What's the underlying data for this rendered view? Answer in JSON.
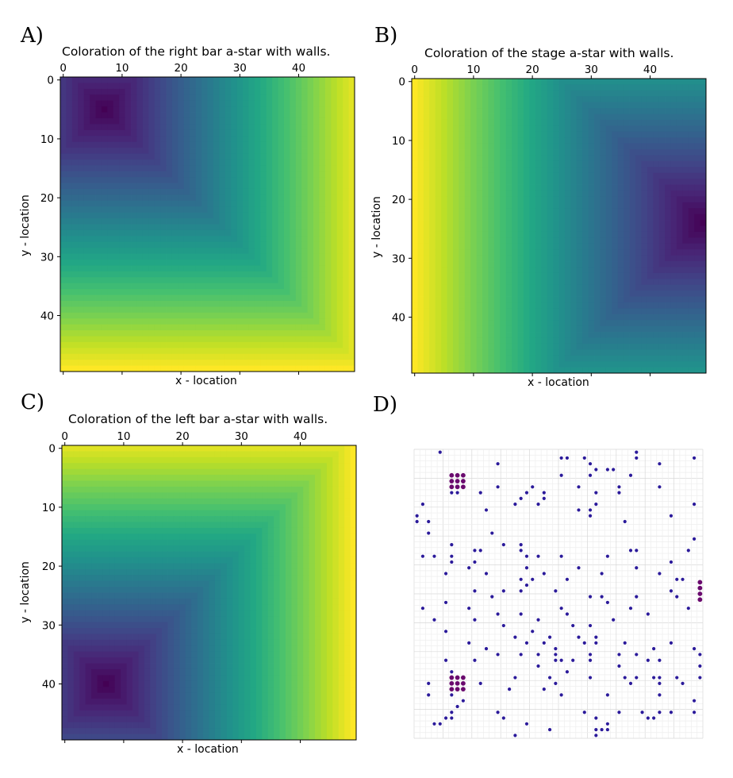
{
  "panels": [
    {
      "id": "A",
      "letter": "A)",
      "title": "Coloration of the right bar a-star with walls.",
      "xlabel": "x - location",
      "ylabel": "y - location"
    },
    {
      "id": "B",
      "letter": "B)",
      "title": "Coloration of the stage a-star with walls.",
      "xlabel": "x - location",
      "ylabel": "y - location"
    },
    {
      "id": "C",
      "letter": "C)",
      "title": "Coloration of the left bar a-star with walls.",
      "xlabel": "x - location",
      "ylabel": "y - location"
    },
    {
      "id": "D",
      "letter": "D)"
    }
  ],
  "chart_data": [
    {
      "type": "heatmap",
      "title": "Coloration of the right bar a-star with walls.",
      "xlabel": "x - location",
      "ylabel": "y - location",
      "grid_size": [
        50,
        50
      ],
      "x_ticks": [
        0,
        10,
        20,
        30,
        40
      ],
      "y_ticks": [
        0,
        10,
        20,
        30,
        40
      ],
      "xlim": [
        0,
        49
      ],
      "ylim": [
        0,
        49
      ],
      "x_axis_position": "top",
      "colormap": "viridis",
      "source_cell": [
        7,
        5
      ],
      "distance": "chebyshev"
    },
    {
      "type": "heatmap",
      "title": "Coloration of the stage a-star with walls.",
      "xlabel": "x - location",
      "ylabel": "y - location",
      "grid_size": [
        50,
        50
      ],
      "x_ticks": [
        0,
        10,
        20,
        30,
        40
      ],
      "y_ticks": [
        0,
        10,
        20,
        30,
        40
      ],
      "xlim": [
        0,
        49
      ],
      "ylim": [
        0,
        49
      ],
      "x_axis_position": "top",
      "colormap": "viridis",
      "source_cell": [
        49,
        24
      ],
      "distance": "chebyshev"
    },
    {
      "type": "heatmap",
      "title": "Coloration of the left bar a-star with walls.",
      "xlabel": "x - location",
      "ylabel": "y - location",
      "grid_size": [
        50,
        50
      ],
      "x_ticks": [
        0,
        10,
        20,
        30,
        40
      ],
      "y_ticks": [
        0,
        10,
        20,
        30,
        40
      ],
      "xlim": [
        0,
        49
      ],
      "ylim": [
        0,
        49
      ],
      "x_axis_position": "top",
      "colormap": "viridis",
      "source_cell": [
        7,
        40
      ],
      "distance": "chebyshev"
    },
    {
      "type": "scatter",
      "grid_size": [
        50,
        50
      ],
      "grid": true,
      "colors": {
        "dot": "#2b1a9a",
        "target": "#6a0a6e"
      },
      "targets": [
        {
          "x": 7,
          "y": 5
        },
        {
          "x": 49,
          "y": 24
        },
        {
          "x": 7,
          "y": 40
        }
      ],
      "points": [
        {
          "x": 4,
          "y": 0
        },
        {
          "x": 25,
          "y": 1
        },
        {
          "x": 26,
          "y": 1
        },
        {
          "x": 29,
          "y": 1
        },
        {
          "x": 38,
          "y": 1
        },
        {
          "x": 38,
          "y": 0
        },
        {
          "x": 48,
          "y": 1
        },
        {
          "x": 14,
          "y": 2
        },
        {
          "x": 30,
          "y": 2
        },
        {
          "x": 33,
          "y": 3
        },
        {
          "x": 34,
          "y": 3
        },
        {
          "x": 31,
          "y": 3
        },
        {
          "x": 42,
          "y": 2
        },
        {
          "x": 25,
          "y": 4
        },
        {
          "x": 30,
          "y": 4
        },
        {
          "x": 37,
          "y": 4
        },
        {
          "x": 14,
          "y": 6
        },
        {
          "x": 20,
          "y": 6
        },
        {
          "x": 28,
          "y": 6
        },
        {
          "x": 35,
          "y": 6
        },
        {
          "x": 42,
          "y": 6
        },
        {
          "x": 6,
          "y": 7
        },
        {
          "x": 7,
          "y": 7
        },
        {
          "x": 11,
          "y": 7
        },
        {
          "x": 19,
          "y": 7
        },
        {
          "x": 22,
          "y": 7
        },
        {
          "x": 31,
          "y": 7
        },
        {
          "x": 35,
          "y": 7
        },
        {
          "x": 18,
          "y": 8
        },
        {
          "x": 22,
          "y": 8
        },
        {
          "x": 1,
          "y": 9
        },
        {
          "x": 12,
          "y": 10
        },
        {
          "x": 17,
          "y": 9
        },
        {
          "x": 21,
          "y": 9
        },
        {
          "x": 28,
          "y": 10
        },
        {
          "x": 30,
          "y": 10
        },
        {
          "x": 31,
          "y": 9
        },
        {
          "x": 48,
          "y": 9
        },
        {
          "x": 0,
          "y": 11
        },
        {
          "x": 30,
          "y": 11
        },
        {
          "x": 44,
          "y": 11
        },
        {
          "x": 2,
          "y": 12
        },
        {
          "x": 36,
          "y": 12
        },
        {
          "x": 0,
          "y": 12
        },
        {
          "x": 13,
          "y": 14
        },
        {
          "x": 2,
          "y": 14
        },
        {
          "x": 15,
          "y": 16
        },
        {
          "x": 6,
          "y": 16
        },
        {
          "x": 18,
          "y": 16
        },
        {
          "x": 48,
          "y": 15
        },
        {
          "x": 3,
          "y": 18
        },
        {
          "x": 1,
          "y": 18
        },
        {
          "x": 6,
          "y": 18
        },
        {
          "x": 10,
          "y": 17
        },
        {
          "x": 11,
          "y": 17
        },
        {
          "x": 18,
          "y": 17
        },
        {
          "x": 19,
          "y": 18
        },
        {
          "x": 21,
          "y": 18
        },
        {
          "x": 25,
          "y": 18
        },
        {
          "x": 37,
          "y": 17
        },
        {
          "x": 38,
          "y": 17
        },
        {
          "x": 47,
          "y": 17
        },
        {
          "x": 6,
          "y": 19
        },
        {
          "x": 10,
          "y": 19
        },
        {
          "x": 33,
          "y": 18
        },
        {
          "x": 44,
          "y": 19
        },
        {
          "x": 9,
          "y": 20
        },
        {
          "x": 19,
          "y": 20
        },
        {
          "x": 28,
          "y": 20
        },
        {
          "x": 38,
          "y": 20
        },
        {
          "x": 5,
          "y": 21
        },
        {
          "x": 12,
          "y": 21
        },
        {
          "x": 22,
          "y": 21
        },
        {
          "x": 32,
          "y": 21
        },
        {
          "x": 42,
          "y": 21
        },
        {
          "x": 18,
          "y": 22
        },
        {
          "x": 20,
          "y": 22
        },
        {
          "x": 26,
          "y": 22
        },
        {
          "x": 46,
          "y": 22
        },
        {
          "x": 45,
          "y": 22
        },
        {
          "x": 10,
          "y": 24
        },
        {
          "x": 15,
          "y": 24
        },
        {
          "x": 18,
          "y": 24
        },
        {
          "x": 19,
          "y": 23
        },
        {
          "x": 24,
          "y": 24
        },
        {
          "x": 44,
          "y": 24
        },
        {
          "x": 13,
          "y": 25
        },
        {
          "x": 30,
          "y": 25
        },
        {
          "x": 32,
          "y": 25
        },
        {
          "x": 33,
          "y": 26
        },
        {
          "x": 38,
          "y": 25
        },
        {
          "x": 45,
          "y": 25
        },
        {
          "x": 5,
          "y": 26
        },
        {
          "x": 1,
          "y": 27
        },
        {
          "x": 25,
          "y": 27
        },
        {
          "x": 37,
          "y": 27
        },
        {
          "x": 47,
          "y": 27
        },
        {
          "x": 9,
          "y": 27
        },
        {
          "x": 14,
          "y": 28
        },
        {
          "x": 18,
          "y": 28
        },
        {
          "x": 26,
          "y": 28
        },
        {
          "x": 34,
          "y": 29
        },
        {
          "x": 40,
          "y": 28
        },
        {
          "x": 3,
          "y": 29
        },
        {
          "x": 10,
          "y": 29
        },
        {
          "x": 15,
          "y": 30
        },
        {
          "x": 21,
          "y": 29
        },
        {
          "x": 27,
          "y": 30
        },
        {
          "x": 30,
          "y": 30
        },
        {
          "x": 5,
          "y": 31
        },
        {
          "x": 17,
          "y": 32
        },
        {
          "x": 20,
          "y": 31
        },
        {
          "x": 23,
          "y": 32
        },
        {
          "x": 28,
          "y": 32
        },
        {
          "x": 31,
          "y": 32
        },
        {
          "x": 9,
          "y": 33
        },
        {
          "x": 12,
          "y": 34
        },
        {
          "x": 19,
          "y": 33
        },
        {
          "x": 22,
          "y": 33
        },
        {
          "x": 24,
          "y": 34
        },
        {
          "x": 29,
          "y": 33
        },
        {
          "x": 31,
          "y": 33
        },
        {
          "x": 36,
          "y": 33
        },
        {
          "x": 44,
          "y": 33
        },
        {
          "x": 48,
          "y": 34
        },
        {
          "x": 41,
          "y": 34
        },
        {
          "x": 14,
          "y": 35
        },
        {
          "x": 18,
          "y": 35
        },
        {
          "x": 21,
          "y": 35
        },
        {
          "x": 24,
          "y": 35
        },
        {
          "x": 30,
          "y": 35
        },
        {
          "x": 35,
          "y": 35
        },
        {
          "x": 38,
          "y": 35
        },
        {
          "x": 49,
          "y": 35
        },
        {
          "x": 5,
          "y": 36
        },
        {
          "x": 10,
          "y": 36
        },
        {
          "x": 24,
          "y": 36
        },
        {
          "x": 25,
          "y": 36
        },
        {
          "x": 27,
          "y": 36
        },
        {
          "x": 30,
          "y": 36
        },
        {
          "x": 40,
          "y": 36
        },
        {
          "x": 42,
          "y": 36
        },
        {
          "x": 21,
          "y": 37
        },
        {
          "x": 26,
          "y": 38
        },
        {
          "x": 35,
          "y": 37
        },
        {
          "x": 49,
          "y": 37
        },
        {
          "x": 6,
          "y": 38
        },
        {
          "x": 17,
          "y": 39
        },
        {
          "x": 23,
          "y": 39
        },
        {
          "x": 30,
          "y": 39
        },
        {
          "x": 36,
          "y": 39
        },
        {
          "x": 38,
          "y": 39
        },
        {
          "x": 41,
          "y": 39
        },
        {
          "x": 42,
          "y": 39
        },
        {
          "x": 45,
          "y": 39
        },
        {
          "x": 49,
          "y": 39
        },
        {
          "x": 2,
          "y": 40
        },
        {
          "x": 11,
          "y": 40
        },
        {
          "x": 24,
          "y": 40
        },
        {
          "x": 37,
          "y": 40
        },
        {
          "x": 42,
          "y": 40
        },
        {
          "x": 46,
          "y": 40
        },
        {
          "x": 22,
          "y": 41
        },
        {
          "x": 16,
          "y": 41
        },
        {
          "x": 25,
          "y": 42
        },
        {
          "x": 2,
          "y": 42
        },
        {
          "x": 6,
          "y": 42
        },
        {
          "x": 33,
          "y": 42
        },
        {
          "x": 42,
          "y": 42
        },
        {
          "x": 48,
          "y": 43
        },
        {
          "x": 8,
          "y": 43
        },
        {
          "x": 7,
          "y": 44
        },
        {
          "x": 6,
          "y": 45
        },
        {
          "x": 14,
          "y": 45
        },
        {
          "x": 31,
          "y": 46
        },
        {
          "x": 29,
          "y": 45
        },
        {
          "x": 35,
          "y": 45
        },
        {
          "x": 39,
          "y": 45
        },
        {
          "x": 44,
          "y": 45
        },
        {
          "x": 42,
          "y": 45
        },
        {
          "x": 48,
          "y": 45
        },
        {
          "x": 5,
          "y": 46
        },
        {
          "x": 15,
          "y": 46
        },
        {
          "x": 6,
          "y": 46
        },
        {
          "x": 40,
          "y": 46
        },
        {
          "x": 41,
          "y": 46
        },
        {
          "x": 3,
          "y": 47
        },
        {
          "x": 4,
          "y": 47
        },
        {
          "x": 19,
          "y": 47
        },
        {
          "x": 23,
          "y": 48
        },
        {
          "x": 32,
          "y": 48
        },
        {
          "x": 33,
          "y": 47
        },
        {
          "x": 33,
          "y": 48
        },
        {
          "x": 31,
          "y": 48
        },
        {
          "x": 17,
          "y": 49
        },
        {
          "x": 31,
          "y": 49
        }
      ]
    }
  ]
}
